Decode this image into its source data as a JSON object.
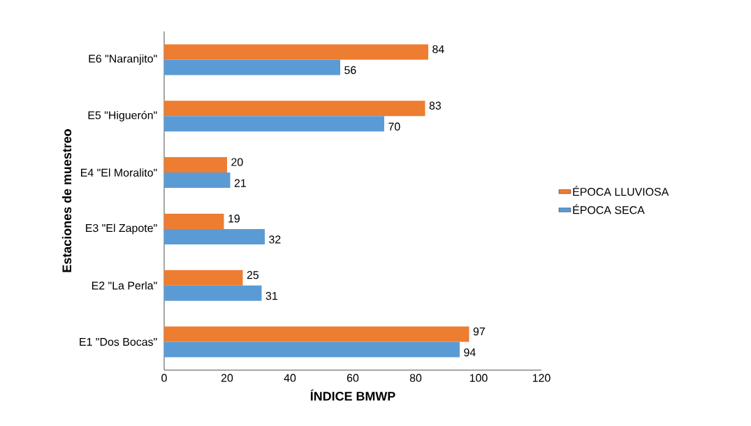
{
  "chart_data": {
    "type": "bar",
    "orientation": "horizontal",
    "xlabel": "ÍNDICE BMWP",
    "ylabel": "Estaciones de muestreo",
    "categories": [
      "E6 \"Naranjito\"",
      "E5 \"Higuerón\"",
      "E4 \"El Moralito\"",
      "E3 \"El Zapote\"",
      "E2 \"La Perla\"",
      "E1 \"Dos Bocas\""
    ],
    "series": [
      {
        "name": "ÉPOCA LLUVIOSA",
        "color": "#ed7d31",
        "values": [
          84,
          83,
          20,
          19,
          25,
          97
        ]
      },
      {
        "name": "ÉPOCA SECA",
        "color": "#5b9bd5",
        "values": [
          56,
          70,
          21,
          32,
          31,
          94
        ]
      }
    ],
    "xlim": [
      0,
      120
    ],
    "xticks": [
      0,
      20,
      40,
      60,
      80,
      100,
      120
    ],
    "data_labels": true,
    "legend": "right",
    "grid": false
  }
}
